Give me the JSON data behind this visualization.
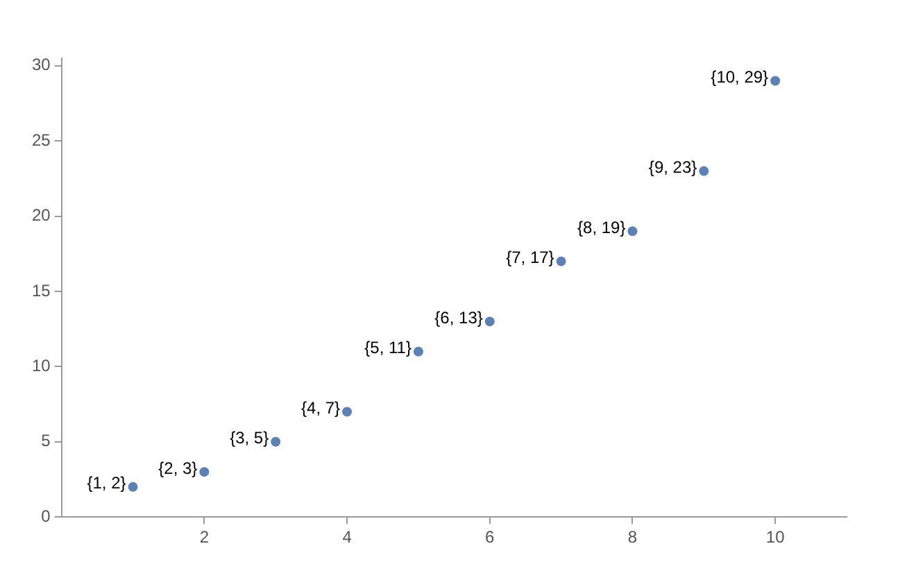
{
  "chart_data": {
    "type": "scatter",
    "x": [
      1,
      2,
      3,
      4,
      5,
      6,
      7,
      8,
      9,
      10
    ],
    "values": [
      2,
      3,
      5,
      7,
      11,
      13,
      17,
      19,
      23,
      29
    ],
    "value_labels": [
      "{1, 2}",
      "{2, 3}",
      "{3, 5}",
      "{4, 7}",
      "{5, 11}",
      "{6, 13}",
      "{7, 17}",
      "{8, 19}",
      "{9, 23}",
      "{10, 29}"
    ],
    "color": "#5e81b5",
    "marker": "circle",
    "grid": false,
    "xlim": [
      0,
      11
    ],
    "xticks": [
      2,
      4,
      6,
      8,
      10
    ],
    "ylim": [
      0,
      30.5
    ],
    "yticks": [
      0,
      5,
      10,
      15,
      20,
      25,
      30
    ]
  }
}
